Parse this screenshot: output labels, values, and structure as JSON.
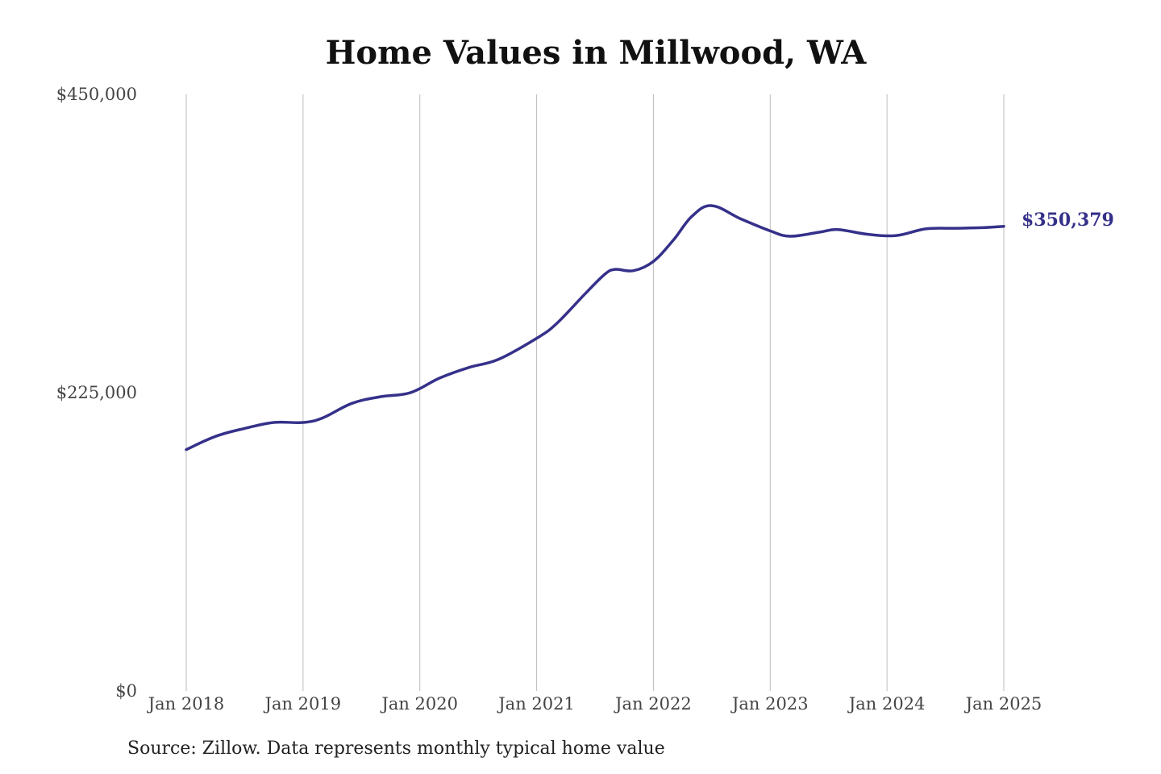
{
  "chart_data": {
    "type": "line",
    "title": "Home Values in Millwood, WA",
    "source": "Source: Zillow. Data represents monthly typical home value",
    "xlabel": "",
    "ylabel": "",
    "ylim": [
      0,
      450000
    ],
    "yticks": [
      {
        "value": 0,
        "label": "$0"
      },
      {
        "value": 225000,
        "label": "$225,000"
      },
      {
        "value": 450000,
        "label": "$450,000"
      }
    ],
    "xticks": [
      {
        "value": 2018.0,
        "label": "Jan 2018"
      },
      {
        "value": 2019.0,
        "label": "Jan 2019"
      },
      {
        "value": 2020.0,
        "label": "Jan 2020"
      },
      {
        "value": 2021.0,
        "label": "Jan 2021"
      },
      {
        "value": 2022.0,
        "label": "Jan 2022"
      },
      {
        "value": 2023.0,
        "label": "Jan 2023"
      },
      {
        "value": 2024.0,
        "label": "Jan 2024"
      },
      {
        "value": 2025.0,
        "label": "Jan 2025"
      }
    ],
    "xlim": [
      2018.0,
      2025.0
    ],
    "grid": {
      "vertical": true,
      "horizontal": false
    },
    "legend": "none",
    "line_color": "#35318a",
    "grid_color": "#bdbdbd",
    "end_label": "$350,379",
    "series": [
      {
        "values": [
          {
            "x": 2018.0,
            "y": 182000
          },
          {
            "x": 2018.25,
            "y": 192000
          },
          {
            "x": 2018.5,
            "y": 198000
          },
          {
            "x": 2018.75,
            "y": 202500
          },
          {
            "x": 2019.0,
            "y": 202500
          },
          {
            "x": 2019.17,
            "y": 206000
          },
          {
            "x": 2019.42,
            "y": 217000
          },
          {
            "x": 2019.67,
            "y": 222000
          },
          {
            "x": 2019.92,
            "y": 225000
          },
          {
            "x": 2020.17,
            "y": 236000
          },
          {
            "x": 2020.42,
            "y": 244000
          },
          {
            "x": 2020.67,
            "y": 250000
          },
          {
            "x": 2021.0,
            "y": 266000
          },
          {
            "x": 2021.17,
            "y": 277000
          },
          {
            "x": 2021.42,
            "y": 300000
          },
          {
            "x": 2021.58,
            "y": 314000
          },
          {
            "x": 2021.67,
            "y": 318000
          },
          {
            "x": 2021.83,
            "y": 317000
          },
          {
            "x": 2022.0,
            "y": 324000
          },
          {
            "x": 2022.17,
            "y": 340000
          },
          {
            "x": 2022.33,
            "y": 358000
          },
          {
            "x": 2022.5,
            "y": 366000
          },
          {
            "x": 2022.75,
            "y": 356000
          },
          {
            "x": 2023.0,
            "y": 347000
          },
          {
            "x": 2023.17,
            "y": 343000
          },
          {
            "x": 2023.42,
            "y": 346000
          },
          {
            "x": 2023.58,
            "y": 348000
          },
          {
            "x": 2023.83,
            "y": 344500
          },
          {
            "x": 2024.08,
            "y": 343500
          },
          {
            "x": 2024.33,
            "y": 348500
          },
          {
            "x": 2024.58,
            "y": 349000
          },
          {
            "x": 2024.83,
            "y": 349500
          },
          {
            "x": 2025.0,
            "y": 350379
          }
        ]
      }
    ]
  }
}
